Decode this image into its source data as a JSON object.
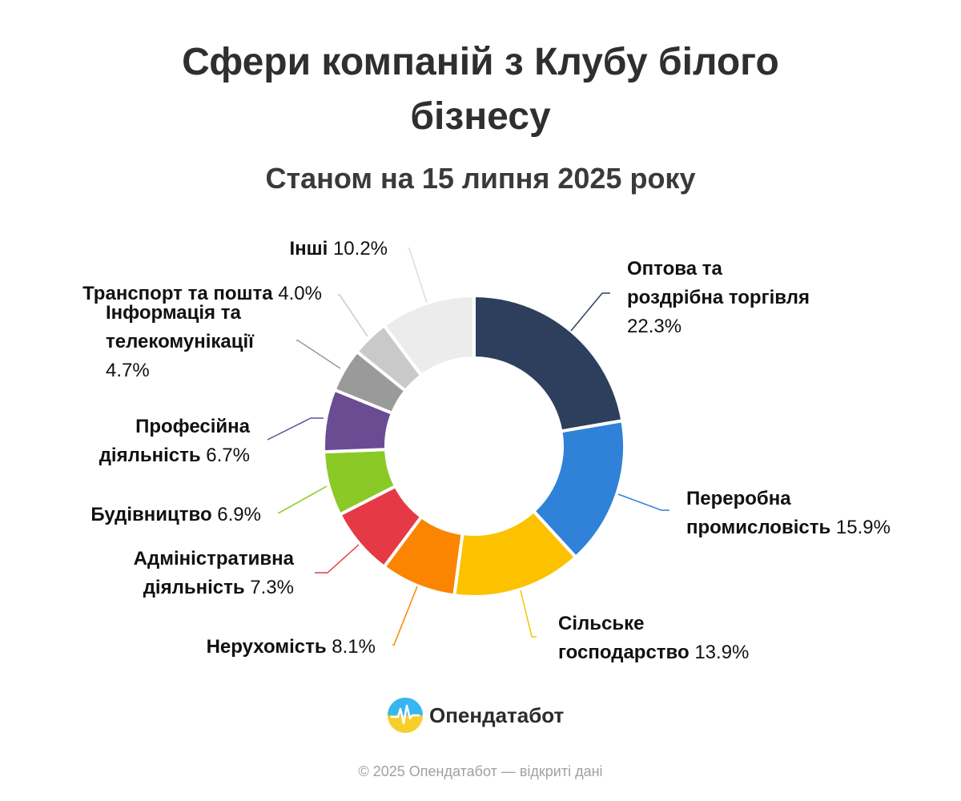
{
  "title_line1": "Сфери компаній з Клубу білого",
  "title_line2": "бізнесу",
  "subtitle": "Станом на 15 липня 2025 року",
  "brand": {
    "name": "Опендатабот",
    "logo_icon": "opendatabot-logo-icon"
  },
  "footer": "© 2025 Опендатабот — відкриті дані",
  "chart_data": {
    "type": "pie",
    "variant": "donut",
    "categories": [
      "Оптова та роздрібна торгівля",
      "Переробна промисловість",
      "Сільське господарство",
      "Нерухомість",
      "Адміністративна діяльність",
      "Будівництво",
      "Професійна діяльність",
      "Інформація та телекомунікації",
      "Транспорт та пошта",
      "Інші"
    ],
    "values": [
      22.3,
      15.9,
      13.9,
      8.1,
      7.3,
      6.9,
      6.7,
      4.7,
      4.0,
      10.2
    ],
    "value_labels": [
      "22.3%",
      "15.9%",
      "13.9%",
      "8.1%",
      "7.3%",
      "6.9%",
      "6.7%",
      "4.7%",
      "4.0%",
      "10.2%"
    ],
    "label_lines": [
      [
        "Оптова та",
        "роздрібна торгівля"
      ],
      [
        "Переробна",
        "промисловість"
      ],
      [
        "Сільське",
        "господарство"
      ],
      [
        "Нерухомість"
      ],
      [
        "Адміністративна",
        "діяльність"
      ],
      [
        "Будівництво"
      ],
      [
        "Професійна",
        "діяльність"
      ],
      [
        "Інформація та",
        "телекомунікації"
      ],
      [
        "Транспорт та пошта"
      ],
      [
        "Інші"
      ]
    ],
    "colors": [
      "#2e3f5e",
      "#2f82d8",
      "#fcc200",
      "#fb8500",
      "#e63946",
      "#8ac926",
      "#6a4c93",
      "#9a9a9a",
      "#c9c9c9",
      "#ececec"
    ],
    "start": "top, clockwise",
    "legend": "none"
  }
}
